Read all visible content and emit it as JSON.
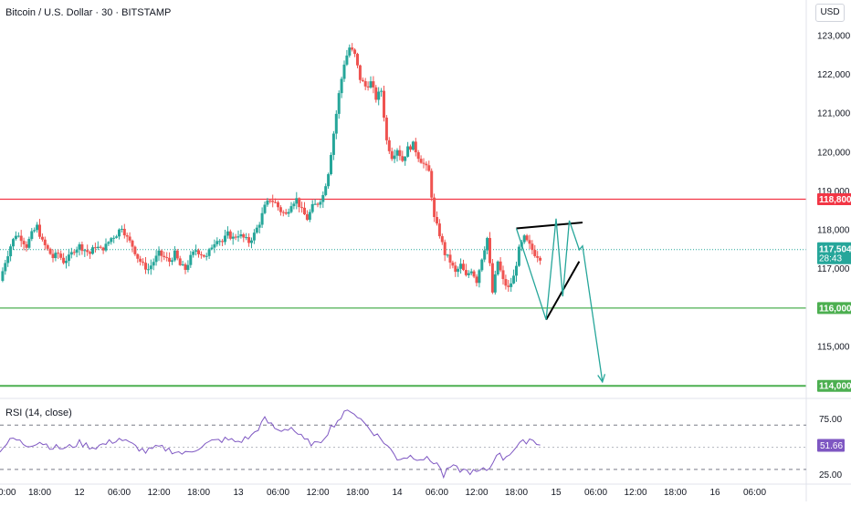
{
  "header": {
    "title": "Bitcoin / U.S. Dollar · 30 · BITSTAMP",
    "currency": "USD"
  },
  "rsi_title": "RSI (14, close)",
  "colors": {
    "up": "#26a69a",
    "down": "#ef5350",
    "resistance": "#f23645",
    "support": "#4caf50",
    "pattern": "#26a69a",
    "trend": "#000000",
    "rsi": "#7e57c2",
    "price_tag": "#26a69a"
  },
  "price_tags": {
    "resistance": "118,800",
    "current": "117,504",
    "countdown": "28:43",
    "support1": "116,000",
    "support2": "114,000"
  },
  "rsi_tag": "51.66",
  "chart_data": [
    {
      "type": "candlestick",
      "title": "Bitcoin / U.S. Dollar · 30 · BITSTAMP",
      "ylabel": "USD",
      "ylim": [
        113700,
        123500
      ],
      "y_ticks": [
        "123,000",
        "122,000",
        "121,000",
        "120,000",
        "119,000",
        "118,000",
        "117,000",
        "115,000"
      ],
      "y_tick_values": [
        123000,
        122000,
        121000,
        120000,
        119000,
        118000,
        117000,
        115000
      ],
      "x_ticks": [
        "18:00",
        "12",
        "06:00",
        "12:00",
        "18:00",
        "13",
        "06:00",
        "12:00",
        "18:00",
        "14",
        "06:00",
        "12:00",
        "18:00",
        "15",
        "06:00",
        "12:00",
        "18:00",
        "16",
        "06:00"
      ],
      "x_tick_hours": [
        18,
        24,
        30,
        36,
        42,
        48,
        54,
        60,
        66,
        72,
        78,
        84,
        90,
        96,
        102,
        108,
        114,
        120,
        126
      ],
      "x_start_label": "0:00",
      "x_start_hour": 12,
      "x_end_hour": 132,
      "grid": false,
      "path_anchors": [
        [
          12.0,
          116700
        ],
        [
          12.8,
          117200
        ],
        [
          13.6,
          117600
        ],
        [
          14.4,
          117900
        ],
        [
          15.2,
          117800
        ],
        [
          16.0,
          117600
        ],
        [
          16.8,
          117900
        ],
        [
          17.6,
          118100
        ],
        [
          18.4,
          117700
        ],
        [
          19.2,
          117500
        ],
        [
          20.0,
          117300
        ],
        [
          20.8,
          117400
        ],
        [
          21.6,
          117200
        ],
        [
          22.4,
          117300
        ],
        [
          23.2,
          117500
        ],
        [
          24.0,
          117600
        ],
        [
          24.8,
          117500
        ],
        [
          25.6,
          117400
        ],
        [
          26.4,
          117600
        ],
        [
          27.2,
          117500
        ],
        [
          28.0,
          117600
        ],
        [
          28.8,
          117800
        ],
        [
          29.6,
          117900
        ],
        [
          30.4,
          118100
        ],
        [
          31.2,
          117800
        ],
        [
          32.0,
          117600
        ],
        [
          32.8,
          117300
        ],
        [
          33.6,
          117100
        ],
        [
          34.4,
          117000
        ],
        [
          35.2,
          117200
        ],
        [
          36.0,
          117400
        ],
        [
          36.8,
          117300
        ],
        [
          37.6,
          117200
        ],
        [
          38.4,
          117400
        ],
        [
          39.2,
          117100
        ],
        [
          40.0,
          117000
        ],
        [
          40.8,
          117300
        ],
        [
          41.6,
          117500
        ],
        [
          42.4,
          117400
        ],
        [
          43.2,
          117300
        ],
        [
          44.0,
          117600
        ],
        [
          44.8,
          117800
        ],
        [
          45.6,
          117700
        ],
        [
          46.4,
          117900
        ],
        [
          47.2,
          117800
        ],
        [
          48.0,
          117900
        ],
        [
          48.8,
          117800
        ],
        [
          49.6,
          117700
        ],
        [
          50.4,
          117900
        ],
        [
          51.2,
          118200
        ],
        [
          52.0,
          118600
        ],
        [
          52.8,
          118800
        ],
        [
          53.6,
          118700
        ],
        [
          54.4,
          118500
        ],
        [
          55.2,
          118400
        ],
        [
          56.0,
          118700
        ],
        [
          56.8,
          118800
        ],
        [
          57.6,
          118500
        ],
        [
          58.4,
          118300
        ],
        [
          59.2,
          118600
        ],
        [
          60.0,
          118700
        ],
        [
          60.8,
          118900
        ],
        [
          61.6,
          119500
        ],
        [
          62.4,
          120500
        ],
        [
          63.2,
          121500
        ],
        [
          64.0,
          122300
        ],
        [
          64.8,
          122700
        ],
        [
          65.6,
          122500
        ],
        [
          66.4,
          121900
        ],
        [
          67.2,
          121700
        ],
        [
          68.0,
          121800
        ],
        [
          68.8,
          121400
        ],
        [
          69.6,
          121600
        ],
        [
          70.4,
          120300
        ],
        [
          71.2,
          119900
        ],
        [
          72.0,
          120100
        ],
        [
          72.8,
          119800
        ],
        [
          73.6,
          120100
        ],
        [
          74.4,
          120200
        ],
        [
          75.2,
          119900
        ],
        [
          76.0,
          119700
        ],
        [
          76.8,
          119500
        ],
        [
          77.6,
          118300
        ],
        [
          78.4,
          117900
        ],
        [
          79.2,
          117400
        ],
        [
          80.0,
          117200
        ],
        [
          80.8,
          116900
        ],
        [
          81.6,
          117100
        ],
        [
          82.4,
          116800
        ],
        [
          83.2,
          117000
        ],
        [
          84.0,
          116700
        ],
        [
          84.8,
          117300
        ],
        [
          85.6,
          117800
        ],
        [
          86.4,
          116400
        ],
        [
          87.2,
          117200
        ],
        [
          88.0,
          116700
        ],
        [
          88.8,
          116500
        ],
        [
          89.6,
          116800
        ],
        [
          90.4,
          117500
        ],
        [
          91.2,
          117800
        ],
        [
          92.0,
          117600
        ],
        [
          92.8,
          117400
        ],
        [
          93.6,
          117300
        ]
      ],
      "last_price": 117504
    },
    {
      "type": "line",
      "title": "RSI (14, close)",
      "ylim": [
        20,
        90
      ],
      "y_ticks": [
        "75.00",
        "25.00"
      ],
      "y_tick_values": [
        75,
        25
      ],
      "guides": [
        70,
        50,
        30
      ],
      "path_anchors": [
        [
          12,
          48
        ],
        [
          14,
          58
        ],
        [
          16,
          52
        ],
        [
          18,
          55
        ],
        [
          20,
          50
        ],
        [
          22,
          49
        ],
        [
          24,
          54
        ],
        [
          26,
          50
        ],
        [
          28,
          53
        ],
        [
          30,
          58
        ],
        [
          32,
          52
        ],
        [
          34,
          46
        ],
        [
          36,
          50
        ],
        [
          38,
          47
        ],
        [
          40,
          44
        ],
        [
          42,
          50
        ],
        [
          44,
          55
        ],
        [
          46,
          57
        ],
        [
          48,
          55
        ],
        [
          50,
          60
        ],
        [
          52,
          75
        ],
        [
          54,
          65
        ],
        [
          56,
          68
        ],
        [
          58,
          56
        ],
        [
          60,
          52
        ],
        [
          62,
          68
        ],
        [
          64,
          80
        ],
        [
          65,
          84
        ],
        [
          66,
          78
        ],
        [
          68,
          66
        ],
        [
          70,
          55
        ],
        [
          72,
          40
        ],
        [
          74,
          42
        ],
        [
          76,
          40
        ],
        [
          78,
          36
        ],
        [
          79,
          24
        ],
        [
          80,
          32
        ],
        [
          82,
          29
        ],
        [
          84,
          27
        ],
        [
          86,
          31
        ],
        [
          87,
          45
        ],
        [
          88,
          40
        ],
        [
          90,
          50
        ],
        [
          92,
          58
        ],
        [
          93.6,
          52
        ]
      ],
      "last_value": 51.66
    }
  ],
  "annotations": {
    "levels": [
      118800,
      116000,
      114000
    ],
    "triangle_top": [
      [
        90.0,
        118050
      ],
      [
        100.0,
        118200
      ]
    ],
    "triangle_bottom": [
      [
        94.5,
        115700
      ],
      [
        99.5,
        117200
      ]
    ],
    "zigzag": [
      [
        90.0,
        118050
      ],
      [
        94.5,
        115700
      ],
      [
        96.0,
        118300
      ],
      [
        97.0,
        116300
      ],
      [
        98.0,
        118250
      ],
      [
        99.5,
        117500
      ],
      [
        100.0,
        117600
      ],
      [
        103.0,
        114100
      ]
    ]
  }
}
